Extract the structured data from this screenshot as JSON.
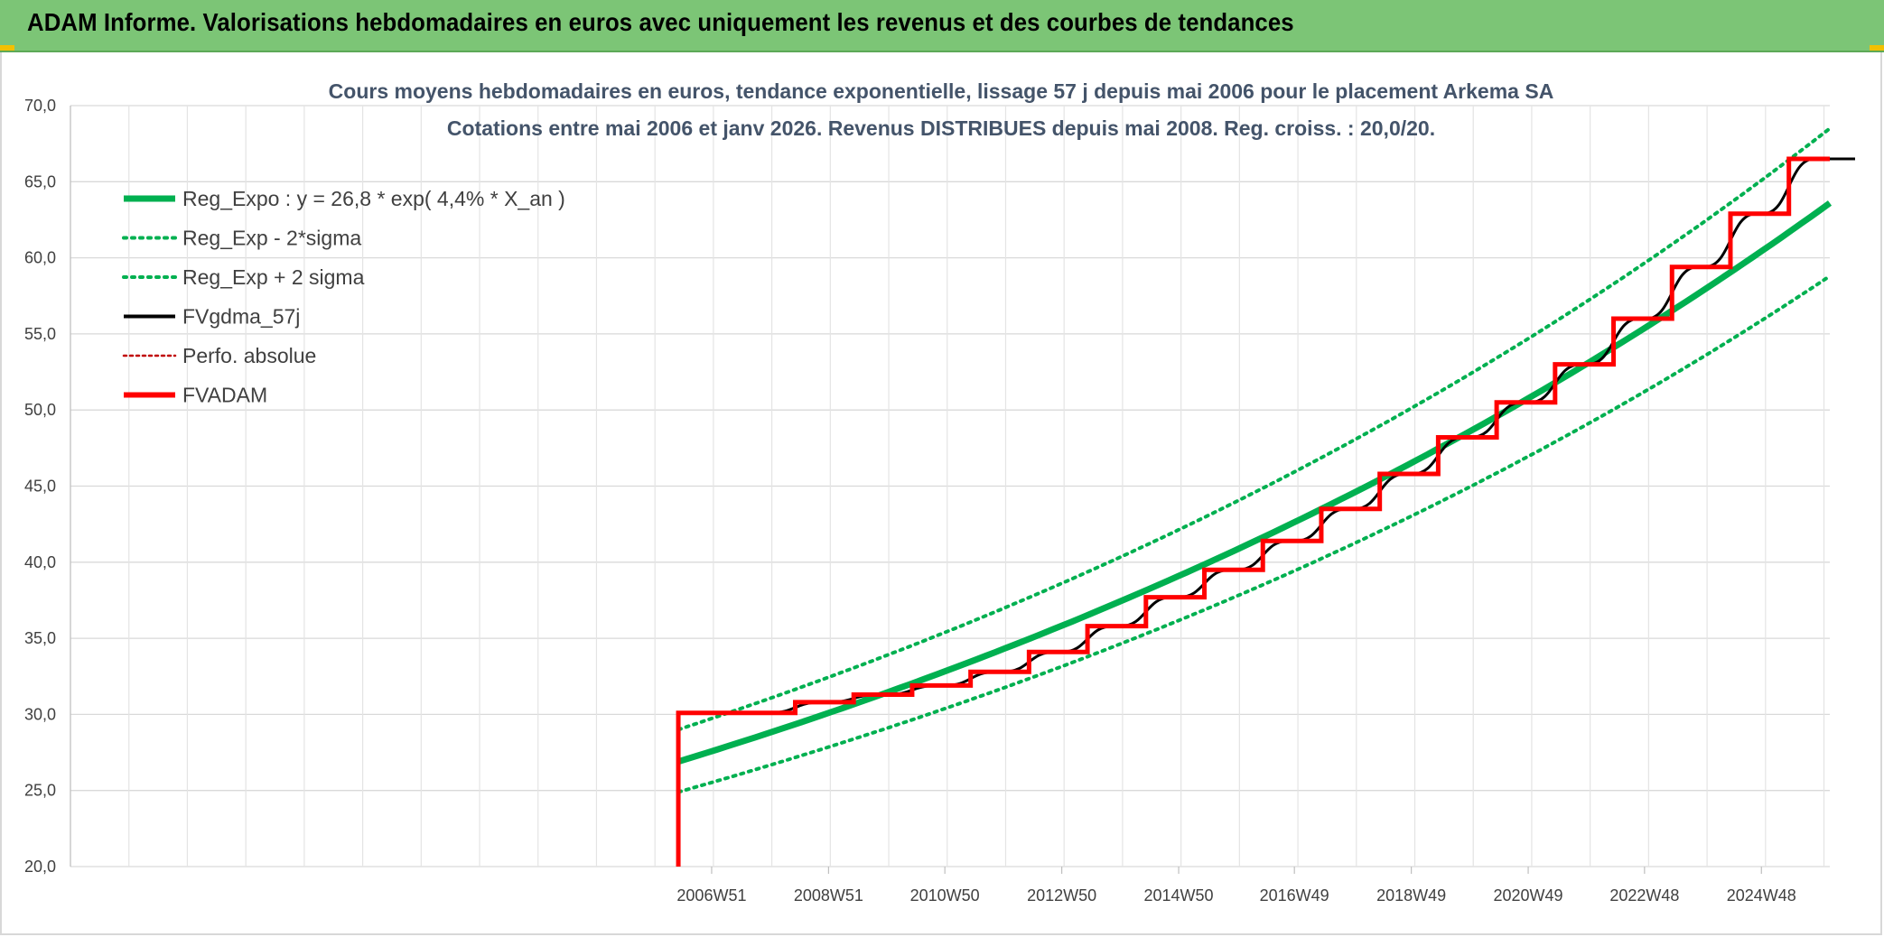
{
  "banner": {
    "title": "ADAM Informe. Valorisations hebdomadaires en euros avec uniquement les revenus et des courbes de tendances"
  },
  "colors": {
    "banner_bg": "#7cc576",
    "reg_expo": "#00b050",
    "fvadam": "#ff0000",
    "fvgdma": "#000000"
  },
  "chart_data": {
    "type": "line",
    "title": "Cours moyens hebdomadaires en euros, tendance exponentielle, lissage 57 j depuis mai 2006 pour le placement Arkema SA",
    "subtitle": "Cotations entre mai 2006 et janv 2026. Revenus DISTRIBUES depuis mai 2008. Reg. croiss. : 20,0/20.",
    "xlabel": "",
    "ylabel": "",
    "ylim": [
      20,
      70
    ],
    "xlim": [
      1996.0,
      2026.1
    ],
    "y_ticks": [
      "20,0",
      "25,0",
      "30,0",
      "35,0",
      "40,0",
      "45,0",
      "50,0",
      "55,0",
      "60,0",
      "65,0",
      "70,0"
    ],
    "x_tick_labels": [
      {
        "label": "2006W51",
        "x": 2006.97
      },
      {
        "label": "2008W51",
        "x": 2008.97
      },
      {
        "label": "2010W50",
        "x": 2010.96
      },
      {
        "label": "2012W50",
        "x": 2012.96
      },
      {
        "label": "2014W50",
        "x": 2014.96
      },
      {
        "label": "2016W49",
        "x": 2016.94
      },
      {
        "label": "2018W49",
        "x": 2018.94
      },
      {
        "label": "2020W49",
        "x": 2020.94
      },
      {
        "label": "2022W48",
        "x": 2022.93
      },
      {
        "label": "2024W48",
        "x": 2024.93
      }
    ],
    "grid": true,
    "legend_position": "top-left",
    "series": [
      {
        "name": "Reg_Expo : y = 26,8 * exp( 4,4% *  X_an )",
        "style": "solid-thick",
        "color": "#00b050",
        "x": [
          2006.4,
          2026.1
        ],
        "y": [
          26.9,
          63.6
        ]
      },
      {
        "name": "Reg_Exp - 2*sigma",
        "style": "dotted",
        "color": "#00b050",
        "x": [
          2006.4,
          2026.1
        ],
        "y": [
          24.9,
          58.8
        ]
      },
      {
        "name": "Reg_Exp + 2 sigma",
        "style": "dotted",
        "color": "#00b050",
        "x": [
          2006.4,
          2026.1
        ],
        "y": [
          29.0,
          68.5
        ]
      },
      {
        "name": "FVgdma_57j",
        "style": "solid-thin",
        "color": "#000000",
        "x": [
          2006.4,
          2026.1
        ],
        "y": [
          30.1,
          66.5
        ]
      },
      {
        "name": "Perfo. absolue",
        "style": "dotted-thin",
        "color": "#c00000",
        "x": [],
        "y": []
      },
      {
        "name": "FVADAM",
        "style": "step",
        "color": "#ff0000",
        "x": [
          2006.4,
          2006.4,
          2008.4,
          2009.4,
          2010.4,
          2011.4,
          2012.4,
          2013.4,
          2014.4,
          2015.4,
          2016.4,
          2017.4,
          2018.4,
          2019.4,
          2020.4,
          2021.4,
          2022.4,
          2023.4,
          2024.4,
          2025.4,
          2026.1
        ],
        "y": [
          20.0,
          30.1,
          30.8,
          31.3,
          31.9,
          32.8,
          34.1,
          35.8,
          37.7,
          39.5,
          41.4,
          43.5,
          45.8,
          48.2,
          50.5,
          53.0,
          56.0,
          59.4,
          62.9,
          66.5,
          66.5
        ]
      }
    ]
  }
}
